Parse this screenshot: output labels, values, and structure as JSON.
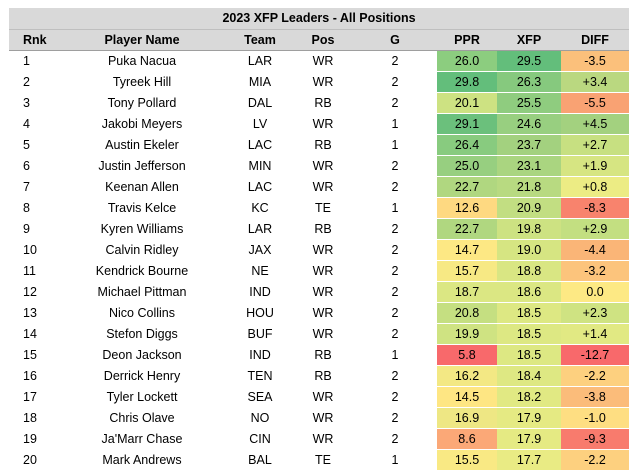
{
  "title": "2023 XFP Leaders - All Positions",
  "columns": [
    "Rnk",
    "Player Name",
    "Team",
    "Pos",
    "G",
    "PPR",
    "XFP",
    "DIFF"
  ],
  "rows": [
    {
      "rnk": "1",
      "player": "Puka Nacua",
      "team": "LAR",
      "pos": "WR",
      "g": "2",
      "ppr": "26.0",
      "xfp": "29.5",
      "diff": "-3.5",
      "ppr_color": "#8ccd7f",
      "xfp_color": "#63be7b",
      "diff_color": "#fbc07b"
    },
    {
      "rnk": "2",
      "player": "Tyreek Hill",
      "team": "MIA",
      "pos": "WR",
      "g": "2",
      "ppr": "29.8",
      "xfp": "26.3",
      "diff": "+3.4",
      "ppr_color": "#63be7b",
      "xfp_color": "#86c97e",
      "diff_color": "#bad880"
    },
    {
      "rnk": "3",
      "player": "Tony Pollard",
      "team": "DAL",
      "pos": "RB",
      "g": "2",
      "ppr": "20.1",
      "xfp": "25.5",
      "diff": "-5.5",
      "ppr_color": "#cde282",
      "xfp_color": "#8fcc7f",
      "diff_color": "#f9a273"
    },
    {
      "rnk": "4",
      "player": "Jakobi Meyers",
      "team": "LV",
      "pos": "WR",
      "g": "1",
      "ppr": "29.1",
      "xfp": "24.6",
      "diff": "+4.5",
      "ppr_color": "#6bc07c",
      "xfp_color": "#98cf80",
      "diff_color": "#a3d17f"
    },
    {
      "rnk": "5",
      "player": "Austin Ekeler",
      "team": "LAC",
      "pos": "RB",
      "g": "1",
      "ppr": "26.4",
      "xfp": "23.7",
      "diff": "+2.7",
      "ppr_color": "#88cb7f",
      "xfp_color": "#a3d17f",
      "diff_color": "#c7e081"
    },
    {
      "rnk": "6",
      "player": "Justin Jefferson",
      "team": "MIN",
      "pos": "WR",
      "g": "2",
      "ppr": "25.0",
      "xfp": "23.1",
      "diff": "+1.9",
      "ppr_color": "#97cf80",
      "xfp_color": "#aad580",
      "diff_color": "#d6e582"
    },
    {
      "rnk": "7",
      "player": "Keenan Allen",
      "team": "LAC",
      "pos": "WR",
      "g": "2",
      "ppr": "22.7",
      "xfp": "21.8",
      "diff": "+0.8",
      "ppr_color": "#b0d780",
      "xfp_color": "#b8da81",
      "diff_color": "#ecec84"
    },
    {
      "rnk": "8",
      "player": "Travis Kelce",
      "team": "KC",
      "pos": "TE",
      "g": "1",
      "ppr": "12.6",
      "xfp": "20.9",
      "diff": "-8.3",
      "ppr_color": "#fed981",
      "xfp_color": "#c2de82",
      "diff_color": "#f8836d"
    },
    {
      "rnk": "9",
      "player": "Kyren Williams",
      "team": "LAR",
      "pos": "RB",
      "g": "2",
      "ppr": "22.7",
      "xfp": "19.8",
      "diff": "+2.9",
      "ppr_color": "#b0d780",
      "xfp_color": "#cde282",
      "diff_color": "#c3df81"
    },
    {
      "rnk": "10",
      "player": "Calvin Ridley",
      "team": "JAX",
      "pos": "WR",
      "g": "2",
      "ppr": "14.7",
      "xfp": "19.0",
      "diff": "-4.4",
      "ppr_color": "#fde884",
      "xfp_color": "#d6e582",
      "diff_color": "#fab577"
    },
    {
      "rnk": "11",
      "player": "Kendrick Bourne",
      "team": "NE",
      "pos": "WR",
      "g": "2",
      "ppr": "15.7",
      "xfp": "18.8",
      "diff": "-3.2",
      "ppr_color": "#f7e984",
      "xfp_color": "#d9e683",
      "diff_color": "#fcc47c"
    },
    {
      "rnk": "12",
      "player": "Michael Pittman",
      "team": "IND",
      "pos": "WR",
      "g": "2",
      "ppr": "18.7",
      "xfp": "18.6",
      "diff": "0.0",
      "ppr_color": "#dbe783",
      "xfp_color": "#dbe783",
      "diff_color": "#fde984"
    },
    {
      "rnk": "13",
      "player": "Nico Collins",
      "team": "HOU",
      "pos": "WR",
      "g": "2",
      "ppr": "20.8",
      "xfp": "18.5",
      "diff": "+2.3",
      "ppr_color": "#c5df81",
      "xfp_color": "#dde883",
      "diff_color": "#cfe382"
    },
    {
      "rnk": "14",
      "player": "Stefon Diggs",
      "team": "BUF",
      "pos": "WR",
      "g": "2",
      "ppr": "19.9",
      "xfp": "18.5",
      "diff": "+1.4",
      "ppr_color": "#cfe382",
      "xfp_color": "#dde883",
      "diff_color": "#e1e983"
    },
    {
      "rnk": "15",
      "player": "Deon Jackson",
      "team": "IND",
      "pos": "RB",
      "g": "1",
      "ppr": "5.8",
      "xfp": "18.5",
      "diff": "-12.7",
      "ppr_color": "#f8696b",
      "xfp_color": "#dde883",
      "diff_color": "#f8696b"
    },
    {
      "rnk": "16",
      "player": "Derrick Henry",
      "team": "TEN",
      "pos": "RB",
      "g": "2",
      "ppr": "16.2",
      "xfp": "18.4",
      "diff": "-2.2",
      "ppr_color": "#f3e884",
      "xfp_color": "#dee883",
      "diff_color": "#fdd07f"
    },
    {
      "rnk": "17",
      "player": "Tyler Lockett",
      "team": "SEA",
      "pos": "WR",
      "g": "2",
      "ppr": "14.5",
      "xfp": "18.2",
      "diff": "-3.8",
      "ppr_color": "#fee683",
      "xfp_color": "#e1e983",
      "diff_color": "#fbbc7a"
    },
    {
      "rnk": "18",
      "player": "Chris Olave",
      "team": "NO",
      "pos": "WR",
      "g": "2",
      "ppr": "16.9",
      "xfp": "17.9",
      "diff": "-1.0",
      "ppr_color": "#eee784",
      "xfp_color": "#e5ea83",
      "diff_color": "#fede82"
    },
    {
      "rnk": "19",
      "player": "Ja'Marr Chase",
      "team": "CIN",
      "pos": "WR",
      "g": "2",
      "ppr": "8.6",
      "xfp": "17.9",
      "diff": "-9.3",
      "ppr_color": "#fba877",
      "xfp_color": "#e5ea83",
      "diff_color": "#f87b6d"
    },
    {
      "rnk": "20",
      "player": "Mark Andrews",
      "team": "BAL",
      "pos": "TE",
      "g": "1",
      "ppr": "15.5",
      "xfp": "17.7",
      "diff": "-2.2",
      "ppr_color": "#f9e984",
      "xfp_color": "#e9eb84",
      "diff_color": "#fdd07f"
    }
  ]
}
